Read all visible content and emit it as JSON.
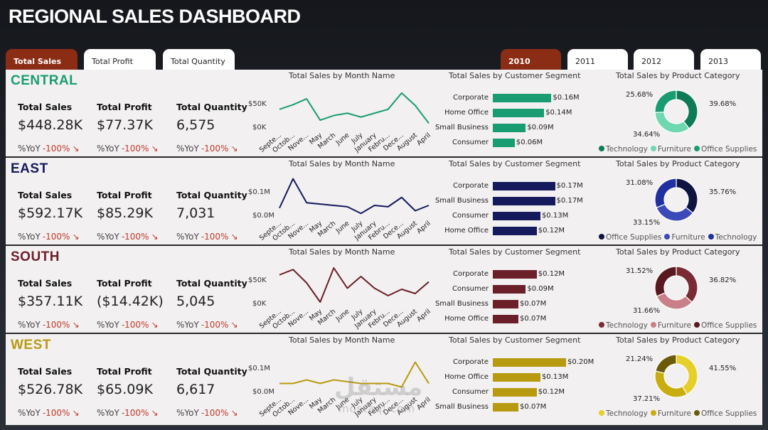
{
  "title": "REGIONAL SALES DASHBOARD",
  "metric_tabs": [
    {
      "label": "Total Sales",
      "active": true
    },
    {
      "label": "Total Profit",
      "active": false
    },
    {
      "label": "Total Quantity",
      "active": false
    }
  ],
  "year_tabs": [
    {
      "label": "2010",
      "active": true
    },
    {
      "label": "2011",
      "active": false
    },
    {
      "label": "2012",
      "active": false
    },
    {
      "label": "2013",
      "active": false
    }
  ],
  "kpi_labels": {
    "sales": "Total Sales",
    "profit": "Total Profit",
    "quantity": "Total Quantity",
    "yoy_prefix": "%YoY",
    "yoy_value": "-100%",
    "yoy_arrow": "↘"
  },
  "chart_titles": {
    "line": "Total Sales by Month Name",
    "bar": "Total Sales by Customer Segment",
    "donut": "Total Sales by Product Category"
  },
  "month_labels": [
    "Septe...",
    "Octob...",
    "Nove...",
    "May",
    "March",
    "June",
    "July",
    "January",
    "Febru...",
    "Dece...",
    "August",
    "April"
  ],
  "regions": [
    {
      "name": "CENTRAL",
      "color": "#1a9c72",
      "light": "#6fd8b0",
      "sales": "$448.28K",
      "profit": "$77.37K",
      "quantity": "6,575",
      "line_yticks": [
        "$50K",
        "$0K"
      ],
      "seg_labels": [
        "Corporate",
        "Home Office",
        "Small Business",
        "Consumer"
      ],
      "seg_values": [
        0.16,
        0.14,
        0.09,
        0.06
      ],
      "seg_texts": [
        "$0.16M",
        "$0.14M",
        "$0.09M",
        "$0.06M"
      ],
      "donut_pcts": [
        39.68,
        34.64,
        25.68
      ],
      "donut_texts": [
        "39.68%",
        "34.64%",
        "25.68%"
      ],
      "donut_legend": [
        "Technology",
        "Furniture",
        "Office Supplies"
      ],
      "donut_colors": [
        "#0f7a56",
        "#6fd8b0",
        "#1a9c72"
      ]
    },
    {
      "name": "EAST",
      "color": "#141a5c",
      "light": "#3c49b8",
      "sales": "$592.17K",
      "profit": "$85.29K",
      "quantity": "7,031",
      "line_yticks": [
        "$0.1M",
        "$0.0M"
      ],
      "seg_labels": [
        "Corporate",
        "Small Business",
        "Consumer",
        "Home Office"
      ],
      "seg_values": [
        0.17,
        0.17,
        0.13,
        0.12
      ],
      "seg_texts": [
        "$0.17M",
        "$0.17M",
        "$0.13M",
        "$0.12M"
      ],
      "donut_pcts": [
        35.76,
        33.15,
        31.08
      ],
      "donut_texts": [
        "35.76%",
        "33.15%",
        "31.08%"
      ],
      "donut_legend": [
        "Office Supplies",
        "Furniture",
        "Technology"
      ],
      "donut_colors": [
        "#0e1340",
        "#3c49b8",
        "#2030a0"
      ]
    },
    {
      "name": "SOUTH",
      "color": "#6b1f28",
      "light": "#c98088",
      "sales": "$357.11K",
      "profit": "($14.42K)",
      "quantity": "5,045",
      "line_yticks": [
        "$50K",
        "$0K"
      ],
      "seg_labels": [
        "Corporate",
        "Consumer",
        "Small Business",
        "Home Office"
      ],
      "seg_values": [
        0.12,
        0.09,
        0.07,
        0.07
      ],
      "seg_texts": [
        "$0.12M",
        "$0.09M",
        "$0.07M",
        "$0.07M"
      ],
      "donut_pcts": [
        36.82,
        31.66,
        31.52
      ],
      "donut_texts": [
        "36.82%",
        "31.66%",
        "31.52%"
      ],
      "donut_legend": [
        "Technology",
        "Furniture",
        "Office Supplies"
      ],
      "donut_colors": [
        "#7a2a33",
        "#c98088",
        "#5a1820"
      ]
    },
    {
      "name": "WEST",
      "color": "#b89a10",
      "light": "#e0c840",
      "sales": "$526.78K",
      "profit": "$65.09K",
      "quantity": "6,617",
      "line_yticks": [
        "$0.1M",
        "$0.0M"
      ],
      "seg_labels": [
        "Corporate",
        "Home Office",
        "Consumer",
        "Small Business"
      ],
      "seg_values": [
        0.2,
        0.13,
        0.12,
        0.07
      ],
      "seg_texts": [
        "$0.20M",
        "$0.13M",
        "$0.12M",
        "$0.07M"
      ],
      "donut_pcts": [
        41.55,
        37.21,
        21.24
      ],
      "donut_texts": [
        "41.55%",
        "37.21%",
        "21.24%"
      ],
      "donut_legend": [
        "Technology",
        "Furniture",
        "Office Supplies"
      ],
      "donut_colors": [
        "#e6cf2a",
        "#c9ad10",
        "#6b5a08"
      ]
    }
  ],
  "chart_data": [
    {
      "type": "line",
      "region": "CENTRAL",
      "title": "Total Sales by Month Name",
      "ylabel": "",
      "categories": [
        "Septe...",
        "Octob...",
        "Nove...",
        "May",
        "March",
        "June",
        "July",
        "January",
        "Febru...",
        "Dece...",
        "August",
        "April"
      ],
      "values": [
        48,
        60,
        75,
        20,
        32,
        38,
        28,
        38,
        48,
        90,
        58,
        12
      ],
      "ylim": [
        0,
        110
      ]
    },
    {
      "type": "line",
      "region": "EAST",
      "title": "Total Sales by Month Name",
      "ylabel": "",
      "categories": [
        "Septe...",
        "Octob...",
        "Nove...",
        "May",
        "March",
        "June",
        "July",
        "January",
        "Febru...",
        "Dece...",
        "August",
        "April"
      ],
      "values": [
        0.03,
        0.14,
        0.05,
        0.045,
        0.04,
        0.035,
        0.01,
        0.04,
        0.035,
        0.07,
        0.02,
        0.04
      ],
      "ylim": [
        0,
        0.16
      ]
    },
    {
      "type": "line",
      "region": "SOUTH",
      "title": "Total Sales by Month Name",
      "ylabel": "",
      "categories": [
        "Septe...",
        "Octob...",
        "Nove...",
        "May",
        "March",
        "June",
        "July",
        "January",
        "Febru...",
        "Dece...",
        "August",
        "April"
      ],
      "values": [
        55,
        65,
        40,
        4,
        68,
        30,
        52,
        30,
        16,
        28,
        20,
        42
      ],
      "ylim": [
        0,
        80
      ]
    },
    {
      "type": "line",
      "region": "WEST",
      "title": "Total Sales by Month Name",
      "ylabel": "",
      "categories": [
        "Septe...",
        "Octob...",
        "Nove...",
        "May",
        "March",
        "June",
        "July",
        "January",
        "Febru...",
        "Dece...",
        "August",
        "April"
      ],
      "values": [
        0.025,
        0.025,
        0.035,
        0.025,
        0.035,
        0.03,
        0.025,
        0.025,
        0.025,
        0.015,
        0.085,
        0.025
      ],
      "ylim": [
        0,
        0.12
      ]
    },
    {
      "type": "bar",
      "region": "CENTRAL",
      "title": "Total Sales by Customer Segment",
      "categories": [
        "Corporate",
        "Home Office",
        "Small Business",
        "Consumer"
      ],
      "values": [
        0.16,
        0.14,
        0.09,
        0.06
      ]
    },
    {
      "type": "bar",
      "region": "EAST",
      "title": "Total Sales by Customer Segment",
      "categories": [
        "Corporate",
        "Small Business",
        "Consumer",
        "Home Office"
      ],
      "values": [
        0.17,
        0.17,
        0.13,
        0.12
      ]
    },
    {
      "type": "bar",
      "region": "SOUTH",
      "title": "Total Sales by Customer Segment",
      "categories": [
        "Corporate",
        "Consumer",
        "Small Business",
        "Home Office"
      ],
      "values": [
        0.12,
        0.09,
        0.07,
        0.07
      ]
    },
    {
      "type": "bar",
      "region": "WEST",
      "title": "Total Sales by Customer Segment",
      "categories": [
        "Corporate",
        "Home Office",
        "Consumer",
        "Small Business"
      ],
      "values": [
        0.2,
        0.13,
        0.12,
        0.07
      ]
    },
    {
      "type": "pie",
      "region": "CENTRAL",
      "title": "Total Sales by Product Category",
      "labels": [
        "Technology",
        "Furniture",
        "Office Supplies"
      ],
      "values": [
        39.68,
        34.64,
        25.68
      ]
    },
    {
      "type": "pie",
      "region": "EAST",
      "title": "Total Sales by Product Category",
      "labels": [
        "Office Supplies",
        "Furniture",
        "Technology"
      ],
      "values": [
        35.76,
        33.15,
        31.08
      ]
    },
    {
      "type": "pie",
      "region": "SOUTH",
      "title": "Total Sales by Product Category",
      "labels": [
        "Technology",
        "Furniture",
        "Office Supplies"
      ],
      "values": [
        36.82,
        31.66,
        31.52
      ]
    },
    {
      "type": "pie",
      "region": "WEST",
      "title": "Total Sales by Product Category",
      "labels": [
        "Technology",
        "Furniture",
        "Office Supplies"
      ],
      "values": [
        41.55,
        37.21,
        21.24
      ]
    }
  ],
  "watermark": {
    "arabic": "مستقل",
    "latin": "mostaql.com"
  }
}
